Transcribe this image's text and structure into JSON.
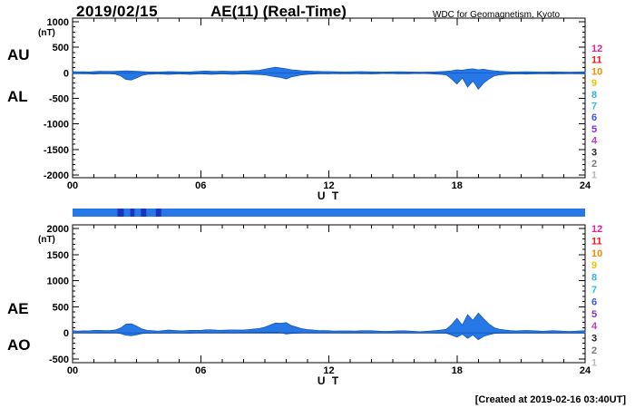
{
  "header": {
    "date": "2019/02/15",
    "title": "AE(11) (Real-Time)",
    "credit": "WDC for Geomagnetism, Kyoto"
  },
  "footer": {
    "created": "[Created at 2019-02-16 03:40UT]"
  },
  "stations": {
    "labels": [
      "12",
      "11",
      "10",
      "9",
      "8",
      "7",
      "6",
      "5",
      "4",
      "3",
      "2",
      "1"
    ],
    "colors": [
      "#e8208c",
      "#f01818",
      "#f08c00",
      "#e8c800",
      "#30b4e8",
      "#28c8c8",
      "#3858e8",
      "#8030d8",
      "#c838c8",
      "#282828",
      "#787878",
      "#b8b8b8"
    ]
  },
  "colors": {
    "trace_fill": "#2678e6",
    "trace_stroke": "#0f4fb4",
    "axis": "#000000",
    "bar": "#2678e6",
    "bar_dark": "#1b34c0"
  },
  "availability": {
    "range_hours": [
      0,
      24
    ],
    "dark_segments_hours": [
      [
        2.1,
        2.4
      ],
      [
        2.7,
        2.9
      ],
      [
        3.2,
        3.45
      ],
      [
        3.9,
        4.15
      ]
    ]
  },
  "chart_data": [
    {
      "type": "area",
      "title": "AU / AL auroral electrojet indices (upper panel)",
      "left_labels": [
        "AU",
        "AL"
      ],
      "ylabel": "(nT)",
      "xlabel": "U T",
      "ylim": [
        -2000,
        1000
      ],
      "yticks": [
        1000,
        500,
        0,
        -500,
        -1000,
        -1500,
        -2000
      ],
      "xlim": [
        0,
        24
      ],
      "xticks": [
        0,
        6,
        12,
        18,
        24
      ],
      "xtick_labels": [
        "00",
        "06",
        "12",
        "18",
        "24"
      ],
      "x_start_hour": 0,
      "x_step_hours": 0.25,
      "series": [
        {
          "name": "AU",
          "values": [
            25,
            20,
            22,
            18,
            25,
            30,
            28,
            28,
            30,
            35,
            40,
            35,
            30,
            25,
            20,
            18,
            15,
            20,
            25,
            22,
            20,
            18,
            20,
            25,
            30,
            35,
            30,
            28,
            32,
            30,
            28,
            30,
            35,
            40,
            45,
            50,
            70,
            90,
            110,
            95,
            80,
            60,
            50,
            40,
            35,
            30,
            28,
            25,
            25,
            22,
            20,
            18,
            20,
            22,
            25,
            22,
            20,
            18,
            15,
            18,
            20,
            22,
            20,
            18,
            15,
            12,
            15,
            18,
            20,
            25,
            30,
            40,
            60,
            50,
            70,
            80,
            60,
            70,
            50,
            40,
            30,
            25,
            20,
            18,
            20,
            22,
            20,
            18,
            15,
            18,
            20,
            18,
            15,
            12,
            15,
            18,
            20
          ]
        },
        {
          "name": "AL",
          "values": [
            -20,
            -15,
            -18,
            -20,
            -25,
            -20,
            -18,
            -20,
            -25,
            -60,
            -130,
            -140,
            -100,
            -50,
            -30,
            -25,
            -20,
            -25,
            -30,
            -25,
            -20,
            -25,
            -30,
            -25,
            -20,
            -25,
            -30,
            -25,
            -20,
            -25,
            -30,
            -25,
            -20,
            -25,
            -30,
            -35,
            -40,
            -60,
            -80,
            -90,
            -120,
            -80,
            -60,
            -40,
            -30,
            -25,
            -20,
            -20,
            -18,
            -15,
            -18,
            -20,
            -18,
            -15,
            -18,
            -20,
            -22,
            -18,
            -15,
            -12,
            -15,
            -18,
            -20,
            -18,
            -15,
            -12,
            -15,
            -18,
            -25,
            -30,
            -40,
            -120,
            -220,
            -100,
            -280,
            -160,
            -320,
            -200,
            -120,
            -60,
            -40,
            -30,
            -25,
            -20,
            -22,
            -25,
            -22,
            -20,
            -18,
            -20,
            -22,
            -20,
            -18,
            -15,
            -18,
            -20,
            -22
          ]
        }
      ]
    },
    {
      "type": "area",
      "title": "AE / AO auroral electrojet indices (lower panel)",
      "left_labels": [
        "AE",
        "AO"
      ],
      "ylabel": "(nT)",
      "xlabel": "U T",
      "ylim": [
        -500,
        2000
      ],
      "yticks": [
        2000,
        1500,
        1000,
        500,
        0,
        -500
      ],
      "xlim": [
        0,
        24
      ],
      "xticks": [
        0,
        6,
        12,
        18,
        24
      ],
      "xtick_labels": [
        "00",
        "06",
        "12",
        "18",
        "24"
      ],
      "x_start_hour": 0,
      "x_step_hours": 0.25,
      "series": [
        {
          "name": "AE",
          "values": [
            45,
            35,
            40,
            38,
            50,
            50,
            46,
            48,
            55,
            95,
            170,
            175,
            130,
            75,
            50,
            43,
            35,
            45,
            55,
            47,
            40,
            43,
            50,
            50,
            50,
            60,
            60,
            53,
            52,
            55,
            58,
            55,
            55,
            65,
            75,
            85,
            110,
            150,
            190,
            185,
            200,
            140,
            110,
            80,
            65,
            55,
            48,
            45,
            43,
            37,
            38,
            38,
            38,
            37,
            43,
            42,
            42,
            36,
            30,
            30,
            35,
            40,
            40,
            36,
            30,
            24,
            30,
            36,
            45,
            55,
            70,
            160,
            280,
            150,
            350,
            240,
            380,
            270,
            170,
            100,
            70,
            55,
            45,
            38,
            42,
            47,
            42,
            38,
            33,
            38,
            42,
            38,
            33,
            27,
            33,
            38,
            42
          ]
        },
        {
          "name": "AO",
          "values": [
            3,
            3,
            2,
            -1,
            0,
            5,
            5,
            4,
            3,
            -13,
            -45,
            -53,
            -35,
            -13,
            -5,
            -4,
            -3,
            -3,
            -3,
            -2,
            0,
            -4,
            -5,
            0,
            5,
            5,
            0,
            2,
            6,
            3,
            -1,
            3,
            8,
            8,
            8,
            8,
            15,
            15,
            15,
            3,
            -20,
            -10,
            -5,
            0,
            3,
            3,
            4,
            3,
            4,
            4,
            1,
            -1,
            1,
            4,
            4,
            1,
            -1,
            0,
            0,
            3,
            3,
            2,
            0,
            0,
            0,
            0,
            0,
            0,
            -3,
            -3,
            -5,
            -40,
            -80,
            -25,
            -105,
            -40,
            -130,
            -65,
            -35,
            -10,
            -5,
            -3,
            -3,
            -1,
            -1,
            -2,
            -1,
            -1,
            -2,
            -1,
            -1,
            -1,
            -2,
            -2,
            -2,
            -1,
            -1
          ]
        }
      ]
    }
  ]
}
